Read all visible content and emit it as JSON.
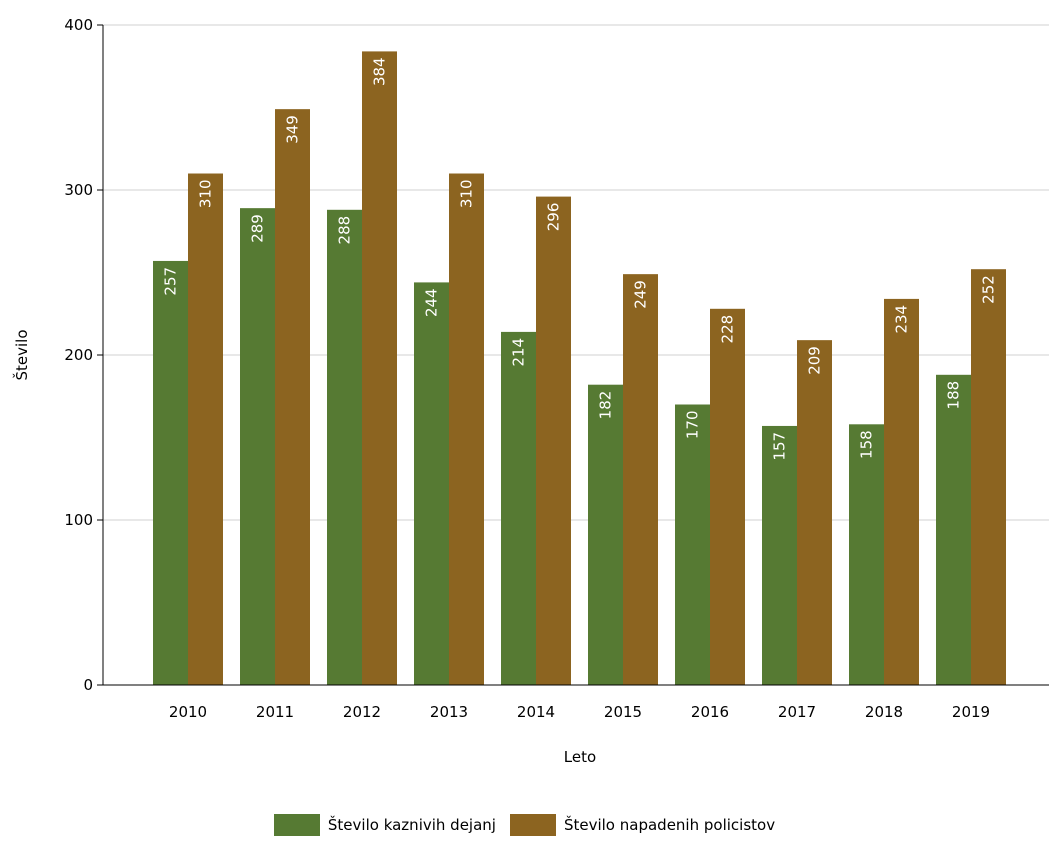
{
  "chart_data": {
    "type": "bar",
    "categories": [
      "2010",
      "2011",
      "2012",
      "2013",
      "2014",
      "2015",
      "2016",
      "2017",
      "2018",
      "2019"
    ],
    "series": [
      {
        "name": "Število kaznivih dejanj",
        "color": "#567a33",
        "values": [
          257,
          289,
          288,
          244,
          214,
          182,
          170,
          157,
          158,
          188
        ]
      },
      {
        "name": "Število napadenih policistov",
        "color": "#8c6420",
        "values": [
          310,
          349,
          384,
          310,
          296,
          249,
          228,
          209,
          234,
          252
        ]
      }
    ],
    "xlabel": "Leto",
    "ylabel": "Število",
    "ylim": [
      0,
      400
    ],
    "yticks": [
      0,
      100,
      200,
      300,
      400
    ],
    "grid": true,
    "legend_position": "bottom"
  }
}
